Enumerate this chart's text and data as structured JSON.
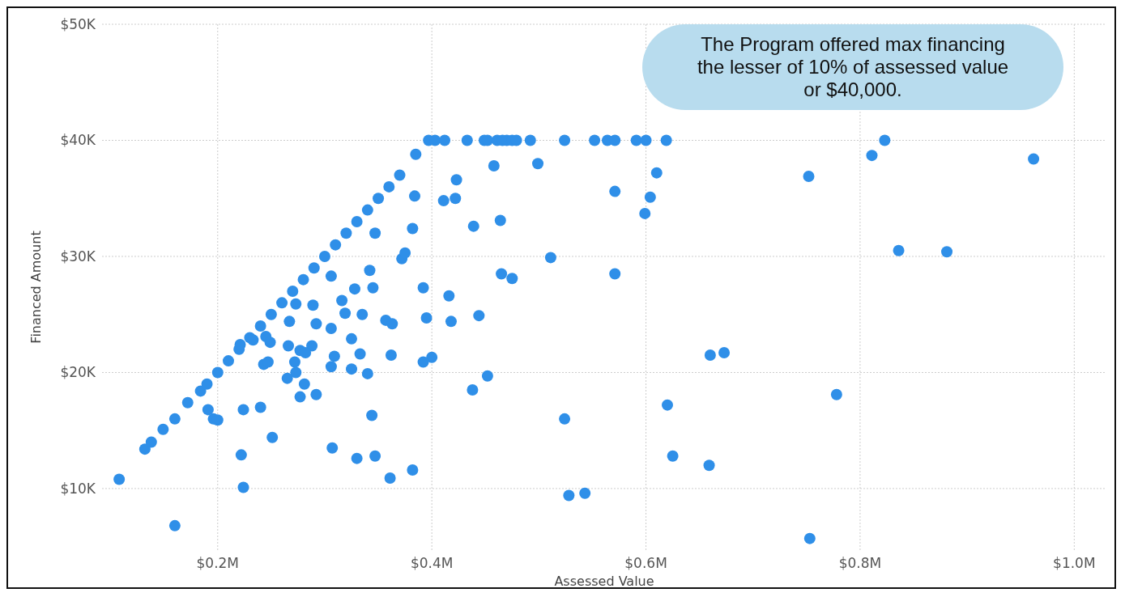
{
  "chart_data": {
    "type": "scatter",
    "xlabel": "Assessed Value",
    "ylabel": "Financed Amount",
    "annotations": [
      "The Program offered max financing the lesser of 10% of assessed value or $40,000."
    ],
    "xlim": [
      92000,
      1030000
    ],
    "ylim": [
      4700,
      50000
    ],
    "xticks": [
      {
        "value": 200000,
        "label": "$0.2M"
      },
      {
        "value": 400000,
        "label": "$0.4M"
      },
      {
        "value": 600000,
        "label": "$0.6M"
      },
      {
        "value": 800000,
        "label": "$0.8M"
      },
      {
        "value": 1000000,
        "label": "$1.0M"
      }
    ],
    "yticks": [
      {
        "value": 10000,
        "label": "$10K"
      },
      {
        "value": 20000,
        "label": "$20K"
      },
      {
        "value": 30000,
        "label": "$30K"
      },
      {
        "value": 40000,
        "label": "$40K"
      },
      {
        "value": 50000,
        "label": "$50K"
      }
    ],
    "grid": true,
    "marker": "circle",
    "color": "#2f8fe8",
    "x": [
      108000,
      132000,
      138000,
      149000,
      160000,
      172000,
      184000,
      190000,
      200000,
      210000,
      220000,
      230000,
      240000,
      250000,
      260000,
      270000,
      280000,
      290000,
      300000,
      310000,
      320000,
      330000,
      340000,
      350000,
      360000,
      370000,
      385000,
      397000,
      403000,
      412000,
      433000,
      449000,
      452000,
      461000,
      466000,
      470000,
      475000,
      479000,
      492000,
      524000,
      552000,
      564000,
      571000,
      591000,
      600000,
      619000,
      823000,
      811000,
      962000,
      752000,
      458000,
      499000,
      610000,
      423000,
      384000,
      604000,
      422000,
      411000,
      571000,
      599000,
      464000,
      439000,
      382000,
      347000,
      836000,
      881000,
      511000,
      372000,
      375000,
      465000,
      475000,
      571000,
      342000,
      306000,
      392000,
      345000,
      328000,
      416000,
      316000,
      273000,
      289000,
      319000,
      335000,
      444000,
      395000,
      357000,
      418000,
      363000,
      306000,
      267000,
      292000,
      245000,
      325000,
      233000,
      221000,
      249000,
      266000,
      288000,
      277000,
      282000,
      309000,
      333000,
      362000,
      400000,
      392000,
      660000,
      673000,
      243000,
      247000,
      272000,
      306000,
      325000,
      273000,
      340000,
      265000,
      281000,
      452000,
      438000,
      292000,
      277000,
      778000,
      620000,
      191000,
      224000,
      240000,
      196000,
      200000,
      344000,
      524000,
      251000,
      307000,
      222000,
      330000,
      347000,
      625000,
      659000,
      382000,
      361000,
      224000,
      528000,
      543000,
      160000,
      753000
    ],
    "values": [
      10800,
      13400,
      14000,
      15100,
      16000,
      17400,
      18400,
      19000,
      20000,
      21000,
      22000,
      23000,
      24000,
      25000,
      26000,
      27000,
      28000,
      29000,
      30000,
      31000,
      32000,
      33000,
      34000,
      35000,
      36000,
      37000,
      38800,
      40000,
      40000,
      40000,
      40000,
      40000,
      40000,
      40000,
      40000,
      40000,
      40000,
      40000,
      40000,
      40000,
      40000,
      40000,
      40000,
      40000,
      40000,
      40000,
      40000,
      38700,
      38400,
      36900,
      37800,
      38000,
      37200,
      36600,
      35200,
      35100,
      35000,
      34800,
      35600,
      33700,
      33100,
      32600,
      32400,
      32000,
      30500,
      30400,
      29900,
      29800,
      30300,
      28500,
      28100,
      28500,
      28800,
      28300,
      27300,
      27300,
      27200,
      26600,
      26200,
      25900,
      25800,
      25100,
      25000,
      24900,
      24700,
      24500,
      24400,
      24200,
      23800,
      24400,
      24200,
      23100,
      22900,
      22800,
      22400,
      22600,
      22300,
      22300,
      21900,
      21700,
      21400,
      21600,
      21500,
      21300,
      20900,
      21500,
      21700,
      20700,
      20900,
      20900,
      20500,
      20300,
      20000,
      19900,
      19500,
      19000,
      19700,
      18500,
      18100,
      17900,
      18100,
      17200,
      16800,
      16800,
      17000,
      16000,
      15900,
      16300,
      16000,
      14400,
      13500,
      12900,
      12600,
      12800,
      12800,
      12000,
      11600,
      10900,
      10100,
      9400,
      9600,
      6800,
      5700
    ]
  }
}
